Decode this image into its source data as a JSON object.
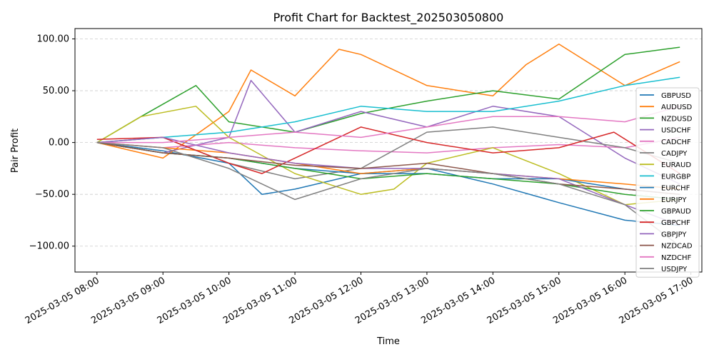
{
  "chart_data": {
    "type": "line",
    "title": "Profit Chart for Backtest_202503050800",
    "xlabel": "Time",
    "ylabel": "Pair Profit",
    "x_range": [
      "2025-03-05 07:40",
      "2025-03-05 17:10"
    ],
    "ylim": [
      -125,
      110
    ],
    "y_ticks": [
      -100,
      -50,
      0,
      50,
      100
    ],
    "y_tick_labels": [
      "−100.00",
      "−50.00",
      "0.00",
      "50.00",
      "100.00"
    ],
    "x_ticks": [
      "2025-03-05 08:00",
      "2025-03-05 09:00",
      "2025-03-05 10:00",
      "2025-03-05 11:00",
      "2025-03-05 12:00",
      "2025-03-05 13:00",
      "2025-03-05 14:00",
      "2025-03-05 15:00",
      "2025-03-05 16:00",
      "2025-03-05 17:00"
    ],
    "x_tick_labels": [
      "2025-03-05 08:00",
      "2025-03-05 09:00",
      "2025-03-05 10:00",
      "2025-03-05 11:00",
      "2025-03-05 12:00",
      "2025-03-05 13:00",
      "2025-03-05 14:00",
      "2025-03-05 15:00",
      "2025-03-05 16:00",
      "2025-03-05 17:00"
    ],
    "grid": "horizontal-dashed",
    "legend_position": "right",
    "series": [
      {
        "name": "GBPUSD",
        "color": "#1f77b4",
        "x": [
          "2025-03-05 08:00",
          "2025-03-05 09:00",
          "2025-03-05 10:00",
          "2025-03-05 10:30",
          "2025-03-05 11:00",
          "2025-03-05 12:00",
          "2025-03-05 13:00",
          "2025-03-05 14:00",
          "2025-03-05 15:00",
          "2025-03-05 16:00",
          "2025-03-05 16:50"
        ],
        "y": [
          0,
          -8,
          -20,
          -50,
          -45,
          -30,
          -25,
          -40,
          -58,
          -75,
          -80
        ]
      },
      {
        "name": "AUDUSD",
        "color": "#ff7f0e",
        "x": [
          "2025-03-05 08:00",
          "2025-03-05 09:00",
          "2025-03-05 10:00",
          "2025-03-05 10:20",
          "2025-03-05 11:00",
          "2025-03-05 11:40",
          "2025-03-05 12:00",
          "2025-03-05 13:00",
          "2025-03-05 14:00",
          "2025-03-05 14:30",
          "2025-03-05 15:00",
          "2025-03-05 16:00",
          "2025-03-05 16:50"
        ],
        "y": [
          0,
          -15,
          30,
          70,
          45,
          90,
          85,
          55,
          45,
          75,
          95,
          55,
          78
        ]
      },
      {
        "name": "NZDUSD",
        "color": "#2ca02c",
        "x": [
          "2025-03-05 08:00",
          "2025-03-05 08:40",
          "2025-03-05 09:30",
          "2025-03-05 10:00",
          "2025-03-05 11:00",
          "2025-03-05 12:00",
          "2025-03-05 13:00",
          "2025-03-05 14:00",
          "2025-03-05 15:00",
          "2025-03-05 16:00",
          "2025-03-05 16:50"
        ],
        "y": [
          0,
          25,
          55,
          20,
          10,
          28,
          40,
          50,
          42,
          85,
          92
        ]
      },
      {
        "name": "USDCHF",
        "color": "#9467bd",
        "x": [
          "2025-03-05 08:00",
          "2025-03-05 09:00",
          "2025-03-05 10:00",
          "2025-03-05 10:20",
          "2025-03-05 11:00",
          "2025-03-05 12:00",
          "2025-03-05 13:00",
          "2025-03-05 14:00",
          "2025-03-05 15:00",
          "2025-03-05 16:00",
          "2025-03-05 16:50"
        ],
        "y": [
          0,
          -10,
          5,
          60,
          10,
          30,
          15,
          35,
          25,
          -15,
          -40
        ]
      },
      {
        "name": "CADCHF",
        "color": "#e377c2",
        "x": [
          "2025-03-05 08:00",
          "2025-03-05 09:00",
          "2025-03-05 10:00",
          "2025-03-05 11:00",
          "2025-03-05 12:00",
          "2025-03-05 13:00",
          "2025-03-05 14:00",
          "2025-03-05 15:00",
          "2025-03-05 16:00",
          "2025-03-05 16:50"
        ],
        "y": [
          0,
          -5,
          0,
          -5,
          -8,
          -10,
          -5,
          -2,
          -5,
          5
        ]
      },
      {
        "name": "CADJPY",
        "color": "#7f7f7f",
        "x": [
          "2025-03-05 08:00",
          "2025-03-05 09:00",
          "2025-03-05 10:00",
          "2025-03-05 11:00",
          "2025-03-05 12:00",
          "2025-03-05 13:00",
          "2025-03-05 14:00",
          "2025-03-05 15:00",
          "2025-03-05 16:00",
          "2025-03-05 16:50"
        ],
        "y": [
          0,
          5,
          -20,
          -35,
          -25,
          10,
          15,
          5,
          -5,
          -20
        ]
      },
      {
        "name": "EURAUD",
        "color": "#bcbd22",
        "x": [
          "2025-03-05 08:00",
          "2025-03-05 08:40",
          "2025-03-05 09:30",
          "2025-03-05 10:00",
          "2025-03-05 11:00",
          "2025-03-05 12:00",
          "2025-03-05 12:30",
          "2025-03-05 13:00",
          "2025-03-05 14:00",
          "2025-03-05 15:00",
          "2025-03-05 16:00",
          "2025-03-05 16:50"
        ],
        "y": [
          0,
          25,
          35,
          5,
          -30,
          -50,
          -45,
          -20,
          -5,
          -30,
          -60,
          -55
        ]
      },
      {
        "name": "EURGBP",
        "color": "#17becf",
        "x": [
          "2025-03-05 08:00",
          "2025-03-05 09:00",
          "2025-03-05 10:00",
          "2025-03-05 11:00",
          "2025-03-05 12:00",
          "2025-03-05 13:00",
          "2025-03-05 14:00",
          "2025-03-05 15:00",
          "2025-03-05 16:00",
          "2025-03-05 16:50"
        ],
        "y": [
          0,
          5,
          10,
          20,
          35,
          30,
          30,
          40,
          55,
          63
        ]
      },
      {
        "name": "EURCHF",
        "color": "#1f77b4",
        "x": [
          "2025-03-05 08:00",
          "2025-03-05 09:00",
          "2025-03-05 10:00",
          "2025-03-05 11:00",
          "2025-03-05 12:00",
          "2025-03-05 13:00",
          "2025-03-05 14:00",
          "2025-03-05 15:00",
          "2025-03-05 16:00",
          "2025-03-05 16:50"
        ],
        "y": [
          0,
          -10,
          -15,
          -25,
          -30,
          -30,
          -35,
          -35,
          -45,
          -50
        ]
      },
      {
        "name": "EURJPY",
        "color": "#ff7f0e",
        "x": [
          "2025-03-05 08:00",
          "2025-03-05 09:00",
          "2025-03-05 10:00",
          "2025-03-05 11:00",
          "2025-03-05 12:00",
          "2025-03-05 13:00",
          "2025-03-05 14:00",
          "2025-03-05 15:00",
          "2025-03-05 16:00",
          "2025-03-05 16:50"
        ],
        "y": [
          0,
          -5,
          -10,
          -20,
          -30,
          -25,
          -30,
          -35,
          -40,
          -45
        ]
      },
      {
        "name": "GBPAUD",
        "color": "#2ca02c",
        "x": [
          "2025-03-05 08:00",
          "2025-03-05 09:00",
          "2025-03-05 10:00",
          "2025-03-05 11:00",
          "2025-03-05 12:00",
          "2025-03-05 13:00",
          "2025-03-05 14:00",
          "2025-03-05 15:00",
          "2025-03-05 16:00",
          "2025-03-05 16:50"
        ],
        "y": [
          0,
          -10,
          -15,
          -25,
          -35,
          -30,
          -35,
          -40,
          -50,
          -55
        ]
      },
      {
        "name": "GBPCHF",
        "color": "#d62728",
        "x": [
          "2025-03-05 08:00",
          "2025-03-05 09:00",
          "2025-03-05 10:00",
          "2025-03-05 10:30",
          "2025-03-05 11:00",
          "2025-03-05 12:00",
          "2025-03-05 13:00",
          "2025-03-05 14:00",
          "2025-03-05 15:00",
          "2025-03-05 15:50",
          "2025-03-05 16:50"
        ],
        "y": [
          3,
          5,
          -20,
          -30,
          -15,
          15,
          0,
          -10,
          -5,
          10,
          -30
        ]
      },
      {
        "name": "GBPJPY",
        "color": "#9467bd",
        "x": [
          "2025-03-05 08:00",
          "2025-03-05 09:00",
          "2025-03-05 10:00",
          "2025-03-05 11:00",
          "2025-03-05 12:00",
          "2025-03-05 13:00",
          "2025-03-05 14:00",
          "2025-03-05 15:00",
          "2025-03-05 16:00",
          "2025-03-05 16:50"
        ],
        "y": [
          0,
          5,
          -10,
          -20,
          -25,
          -25,
          -30,
          -35,
          -60,
          -80
        ]
      },
      {
        "name": "NZDCAD",
        "color": "#8c564b",
        "x": [
          "2025-03-05 08:00",
          "2025-03-05 09:00",
          "2025-03-05 10:00",
          "2025-03-05 11:00",
          "2025-03-05 12:00",
          "2025-03-05 13:00",
          "2025-03-05 14:00",
          "2025-03-05 15:00",
          "2025-03-05 16:00",
          "2025-03-05 16:50"
        ],
        "y": [
          0,
          -10,
          -15,
          -22,
          -25,
          -20,
          -30,
          -40,
          -45,
          -50
        ]
      },
      {
        "name": "NZDCHF",
        "color": "#e377c2",
        "x": [
          "2025-03-05 08:00",
          "2025-03-05 09:00",
          "2025-03-05 10:00",
          "2025-03-05 11:00",
          "2025-03-05 12:00",
          "2025-03-05 13:00",
          "2025-03-05 14:00",
          "2025-03-05 15:00",
          "2025-03-05 16:00",
          "2025-03-05 16:50"
        ],
        "y": [
          0,
          0,
          5,
          10,
          5,
          15,
          25,
          25,
          20,
          35
        ]
      },
      {
        "name": "USDJPY",
        "color": "#7f7f7f",
        "x": [
          "2025-03-05 08:00",
          "2025-03-05 09:00",
          "2025-03-05 10:00",
          "2025-03-05 11:00",
          "2025-03-05 12:00",
          "2025-03-05 13:00",
          "2025-03-05 14:00",
          "2025-03-05 15:00",
          "2025-03-05 16:00",
          "2025-03-05 16:50"
        ],
        "y": [
          0,
          -5,
          -25,
          -55,
          -35,
          -25,
          -30,
          -40,
          -60,
          -100
        ]
      }
    ]
  }
}
